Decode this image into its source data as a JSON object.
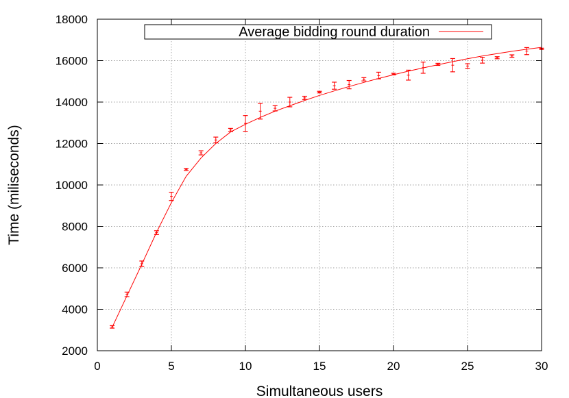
{
  "chart_data": {
    "type": "line",
    "xlabel": "Simultaneous users",
    "ylabel": "Time (miliseconds)",
    "xlim": [
      0,
      30
    ],
    "ylim": [
      2000,
      18000
    ],
    "xticks": [
      0,
      5,
      10,
      15,
      20,
      25,
      30
    ],
    "yticks": [
      2000,
      4000,
      6000,
      8000,
      10000,
      12000,
      14000,
      16000,
      18000
    ],
    "grid": true,
    "legend_position": "top-center",
    "series": [
      {
        "name": "Average bidding round duration",
        "color": "#ff0000",
        "style": "fitted-line",
        "x": [
          1,
          2,
          3,
          4,
          5,
          6,
          7,
          8,
          9,
          10,
          11,
          12,
          13,
          14,
          15,
          16,
          17,
          18,
          19,
          20,
          21,
          22,
          23,
          24,
          25,
          26,
          27,
          28,
          29,
          30
        ],
        "y": [
          3130,
          4650,
          6170,
          7720,
          9150,
          10420,
          11300,
          12000,
          12560,
          12930,
          13260,
          13560,
          13820,
          14080,
          14320,
          14540,
          14750,
          14950,
          15140,
          15320,
          15490,
          15650,
          15800,
          15950,
          16090,
          16220,
          16340,
          16450,
          16550,
          16640
        ]
      },
      {
        "name": "",
        "color": "#ff0000",
        "style": "errorbars",
        "x": [
          1,
          2,
          3,
          4,
          5,
          6,
          7,
          8,
          9,
          10,
          11,
          12,
          13,
          14,
          15,
          16,
          17,
          18,
          19,
          20,
          21,
          22,
          23,
          24,
          25,
          26,
          27,
          28,
          29,
          30
        ],
        "y": [
          3150,
          4720,
          6200,
          7700,
          9450,
          10750,
          11550,
          12170,
          12650,
          12970,
          13560,
          13700,
          14000,
          14200,
          14480,
          14790,
          14840,
          15100,
          15280,
          15350,
          15300,
          15660,
          15820,
          15780,
          15740,
          16020,
          16140,
          16220,
          16460,
          16570
        ],
        "err": [
          60,
          110,
          130,
          90,
          200,
          50,
          100,
          140,
          80,
          380,
          380,
          130,
          230,
          80,
          40,
          170,
          200,
          80,
          160,
          40,
          240,
          270,
          50,
          320,
          110,
          140,
          50,
          60,
          170,
          30
        ]
      }
    ]
  }
}
